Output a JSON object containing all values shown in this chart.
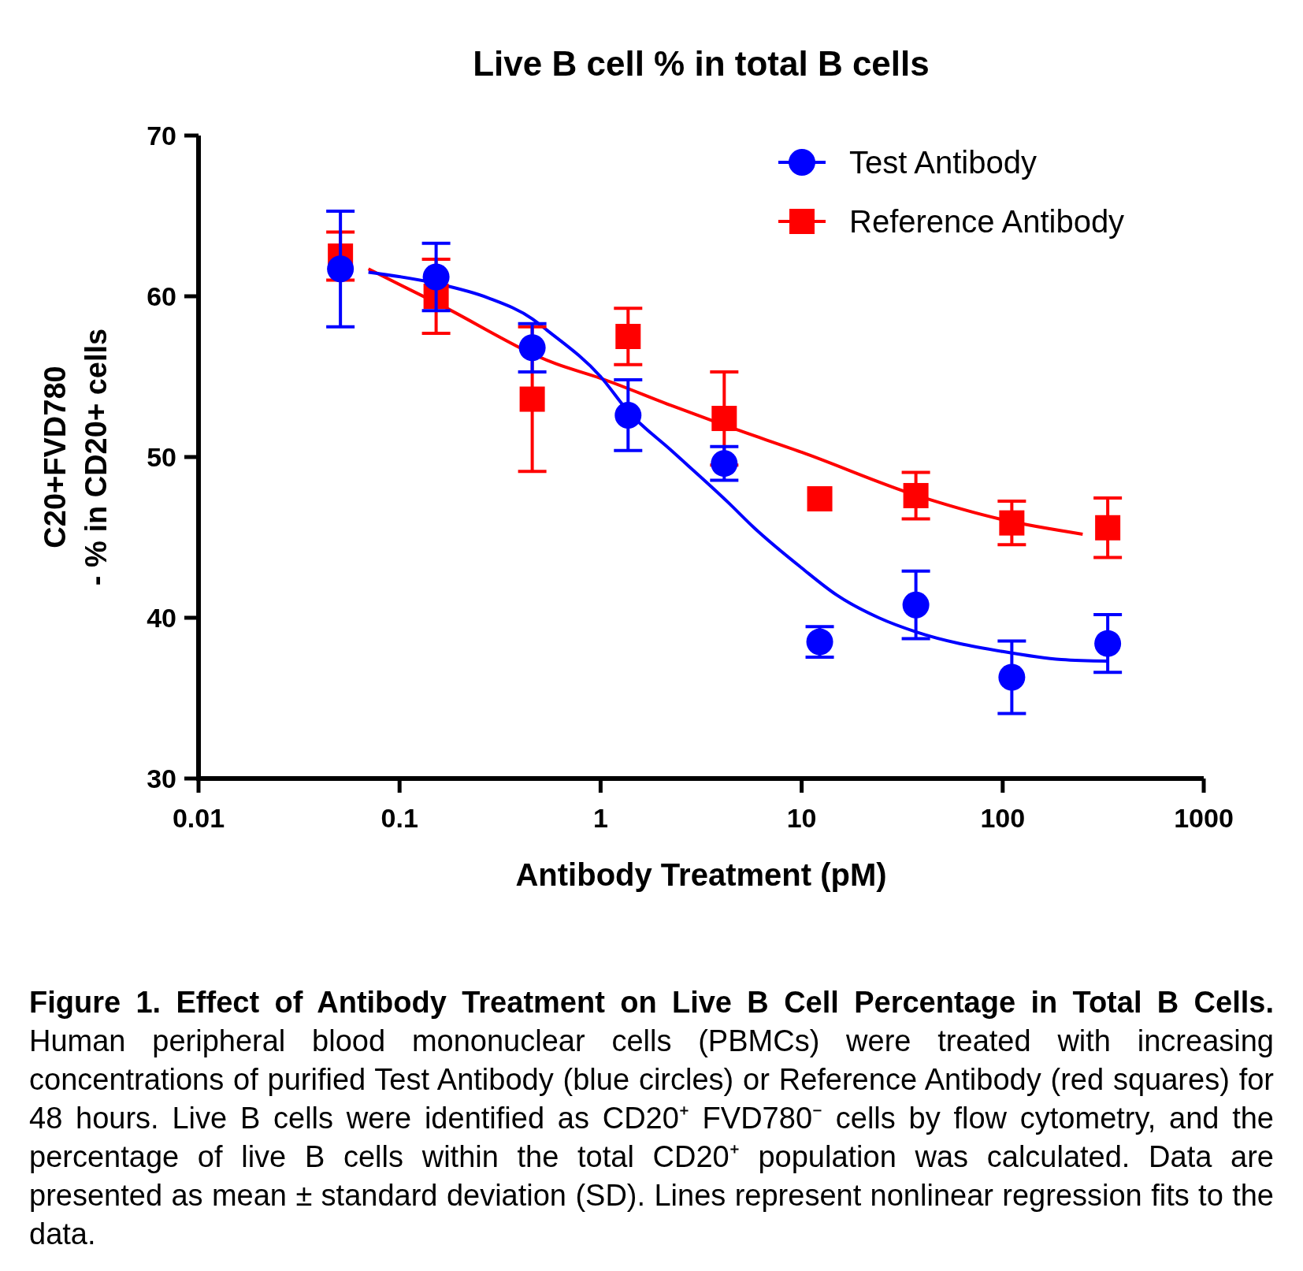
{
  "chart_data": {
    "type": "scatter",
    "title": "Live B cell % in total B cells",
    "xlabel": "Antibody Treatment (pM)",
    "ylabel": "C20+FVD780\n- % in CD20+ cells",
    "log": "x",
    "xlim": [
      0.01,
      1000
    ],
    "xticks": [
      0.01,
      0.1,
      1,
      10,
      100,
      1000
    ],
    "ylim": [
      30,
      70
    ],
    "yticks": [
      30,
      40,
      50,
      60,
      70
    ],
    "grid": false,
    "legend": "top right",
    "series": [
      {
        "type": "line",
        "color": "#0000ff",
        "x": [
          0.07,
          0.152,
          0.276,
          0.457,
          0.54,
          1,
          1.38,
          2.25,
          4.29,
          5.8,
          10,
          15,
          24.2,
          37.5,
          100,
          196,
          335
        ],
        "values": [
          61.5,
          60.8,
          59.9,
          58.6,
          57.9,
          55.0,
          52.8,
          50.4,
          47.2,
          45.6,
          43.1,
          41.4,
          40.0,
          39.1,
          37.9,
          37.4,
          37.3
        ]
      },
      {
        "type": "line",
        "color": "#ff0000",
        "x": [
          0.07,
          0.152,
          0.6,
          1,
          2.25,
          4.29,
          10,
          37.5,
          100,
          250
        ],
        "values": [
          61.7,
          59.6,
          55.8,
          54.9,
          53.2,
          51.9,
          50.3,
          47.6,
          46.1,
          45.2
        ]
      },
      {
        "name": "Test Antibody",
        "marker": "circle",
        "color": "#0000ff",
        "x": [
          0.0508,
          0.152,
          0.457,
          1.37,
          4.12,
          12.3,
          37,
          111,
          333
        ],
        "values": [
          61.7,
          61.2,
          56.8,
          52.6,
          49.6,
          38.5,
          40.8,
          36.3,
          38.4
        ],
        "errors": [
          3.6,
          2.1,
          1.5,
          2.2,
          1.05,
          0.95,
          2.1,
          2.25,
          1.8
        ]
      },
      {
        "name": "Reference Antibody",
        "marker": "square",
        "color": "#ff0000",
        "x": [
          0.0508,
          0.152,
          0.457,
          1.37,
          4.12,
          12.3,
          37,
          111,
          333
        ],
        "values": [
          62.5,
          60.0,
          53.6,
          57.5,
          52.4,
          47.4,
          47.6,
          45.9,
          45.6
        ],
        "errors": [
          1.5,
          2.3,
          4.5,
          1.75,
          2.9,
          null,
          1.45,
          1.35,
          1.85
        ]
      }
    ],
    "annotations": [
      "Figure 1. Effect of Antibody Treatment on Live B Cell Percentage in Total B Cells.",
      "Human peripheral blood mononuclear cells (PBMCs) were treated with increasing concentrations of purified Test Antibody (blue circles) or Reference Antibody (red squares) for 48 hours. Live B cells were identified as CD20⁺ FVD780⁻ cells by flow cytometry, and the percentage of live B cells within the total CD20⁺ population was calculated. Data are presented as mean ± standard deviation (SD). Lines represent nonlinear regression fits to the data."
    ]
  }
}
